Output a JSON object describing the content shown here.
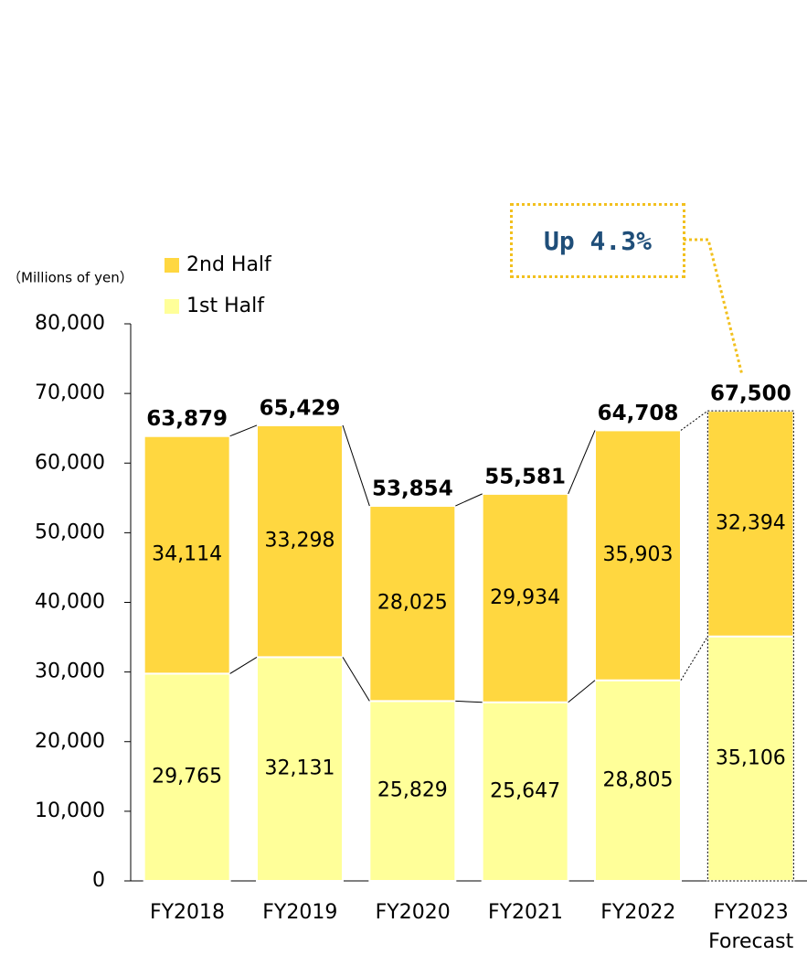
{
  "chart_data": {
    "type": "stacked_bar",
    "y_axis_label": "（Millions of yen）",
    "categories": [
      "FY2018",
      "FY2019",
      "FY2020",
      "FY2021",
      "FY2022",
      "FY2023\nForecast"
    ],
    "series": [
      {
        "name": "1st Half",
        "color": "#ffff99",
        "values": [
          29765,
          32131,
          25829,
          25647,
          28805,
          35106
        ],
        "value_labels": [
          "29,765",
          "32,131",
          "25,829",
          "25,647",
          "28,805",
          "35,106"
        ]
      },
      {
        "name": "2nd Half",
        "color": "#ffd740",
        "values": [
          34114,
          33298,
          28025,
          29934,
          35903,
          32394
        ],
        "value_labels": [
          "34,114",
          "33,298",
          "28,025",
          "29,934",
          "35,903",
          "32,394"
        ]
      }
    ],
    "totals": {
      "values": [
        63879,
        65429,
        53854,
        55581,
        64708,
        67500
      ],
      "value_labels": [
        "63,879",
        "65,429",
        "53,854",
        "55,581",
        "64,708",
        "67,500"
      ]
    },
    "annotation": "Up 4.3%",
    "ylim": [
      0,
      80000
    ],
    "yticks": [
      0,
      {
        "value": 10000,
        "label": "10,000"
      },
      {
        "value": 20000,
        "label": "20,000"
      },
      {
        "value": 30000,
        "label": "30,000"
      },
      {
        "value": 40000,
        "label": "40,000"
      },
      {
        "value": 50000,
        "label": "50,000"
      },
      {
        "value": 60000,
        "label": "60,000"
      },
      {
        "value": 70000,
        "label": "70,000"
      },
      {
        "value": 80000,
        "label": "80,000"
      }
    ],
    "legend": "top-left"
  }
}
